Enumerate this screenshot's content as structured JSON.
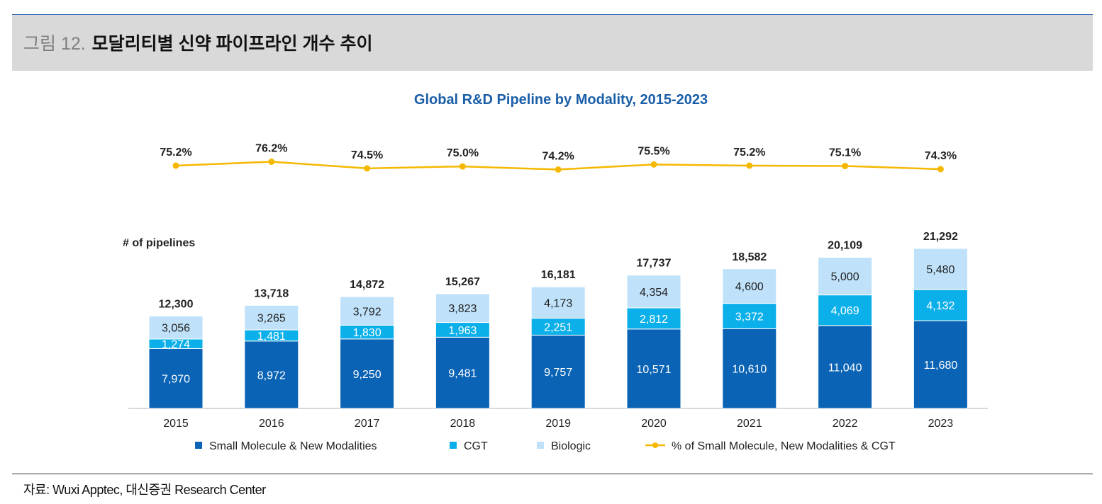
{
  "figure": {
    "label": "그림 12.",
    "title": "모달리티별 신약 파이프라인 개수 추이"
  },
  "source": "자료: Wuxi Apptec, 대신증권 Research Center",
  "chart_data": {
    "type": "bar",
    "stacked": true,
    "title": "Global R&D Pipeline by Modality, 2015-2023",
    "ylabel": "# of pipelines",
    "categories": [
      "2015",
      "2016",
      "2017",
      "2018",
      "2019",
      "2020",
      "2021",
      "2022",
      "2023"
    ],
    "series": [
      {
        "name": "Small Molecule & New Modalities",
        "color": "#0a63b4",
        "labels": [
          "7,970",
          "8,972",
          "9,250",
          "9,481",
          "9,757",
          "10,571",
          "10,610",
          "11,040",
          "11,680"
        ],
        "values": [
          7970,
          8972,
          9250,
          9481,
          9757,
          10571,
          10610,
          11040,
          11680
        ]
      },
      {
        "name": "CGT",
        "color": "#0bb0ea",
        "labels": [
          "1,274",
          "1,481",
          "1,830",
          "1,963",
          "2,251",
          "2,812",
          "3,372",
          "4,069",
          "4,132"
        ],
        "values": [
          1274,
          1481,
          1830,
          1963,
          2251,
          2812,
          3372,
          4069,
          4132
        ]
      },
      {
        "name": "Biologic",
        "color": "#bfe2fa",
        "labels": [
          "3,056",
          "3,265",
          "3,792",
          "3,823",
          "4,173",
          "4,354",
          "4,600",
          "5,000",
          "5,480"
        ],
        "values": [
          3056,
          3265,
          3792,
          3823,
          4173,
          4354,
          4600,
          5000,
          5480
        ]
      }
    ],
    "totals": [
      "12,300",
      "13,718",
      "14,872",
      "15,267",
      "16,181",
      "17,737",
      "18,582",
      "20,109",
      "21,292"
    ],
    "line": {
      "name": "% of Small Molecule, New Modalities & CGT",
      "color": "#f5b800",
      "values": [
        75.2,
        76.2,
        74.5,
        75.0,
        74.2,
        75.5,
        75.2,
        75.1,
        74.3
      ],
      "labels": [
        "75.2%",
        "76.2%",
        "74.5%",
        "75.0%",
        "74.2%",
        "75.5%",
        "75.2%",
        "75.1%",
        "74.3%"
      ]
    },
    "colors": {
      "title": "#1a5ea8",
      "axis": "#d9d9d9"
    }
  }
}
